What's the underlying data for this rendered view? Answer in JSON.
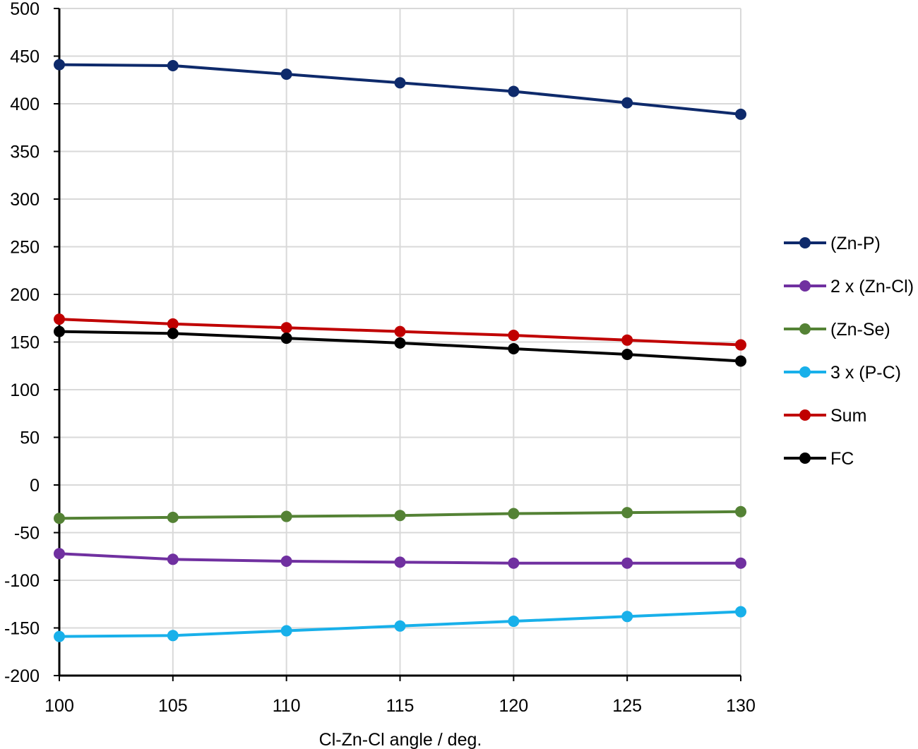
{
  "chart_data": {
    "type": "line",
    "title": "",
    "xlabel": "Cl-Zn-Cl angle / deg.",
    "ylabel": "",
    "x": [
      100,
      105,
      110,
      115,
      120,
      125,
      130
    ],
    "xlim": [
      100,
      130
    ],
    "ylim": [
      -200,
      500
    ],
    "xticks": [
      100,
      105,
      110,
      115,
      120,
      125,
      130
    ],
    "yticks": [
      -200,
      -150,
      -100,
      -50,
      0,
      50,
      100,
      150,
      200,
      250,
      300,
      350,
      400,
      450,
      500
    ],
    "grid": true,
    "legend_position": "right",
    "series": [
      {
        "name": "(Zn-P)",
        "color": "#0e2a6b",
        "values": [
          441,
          440,
          431,
          422,
          413,
          401,
          389
        ]
      },
      {
        "name": "2 x (Zn-Cl)",
        "color": "#7030a0",
        "values": [
          -72,
          -78,
          -80,
          -81,
          -82,
          -82,
          -82
        ]
      },
      {
        "name": "(Zn-Se)",
        "color": "#548235",
        "values": [
          -35,
          -34,
          -33,
          -32,
          -30,
          -29,
          -28
        ]
      },
      {
        "name": "3 x (P-C)",
        "color": "#18b0ea",
        "values": [
          -159,
          -158,
          -153,
          -148,
          -143,
          -138,
          -133
        ]
      },
      {
        "name": "Sum",
        "color": "#c00000",
        "values": [
          174,
          169,
          165,
          161,
          157,
          152,
          147
        ]
      },
      {
        "name": "FC",
        "color": "#000000",
        "values": [
          161,
          159,
          154,
          149,
          143,
          137,
          130
        ]
      }
    ]
  }
}
